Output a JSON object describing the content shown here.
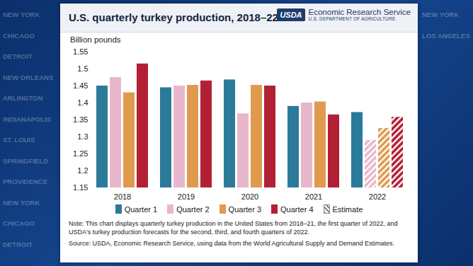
{
  "chart_data": {
    "type": "bar",
    "title": "U.S. quarterly turkey production, 2018–22",
    "logo": {
      "mark": "USDA",
      "name": "Economic Research Service",
      "department": "U.S. DEPARTMENT OF AGRICULTURE"
    },
    "y_label": "Billion pounds",
    "categories": [
      "2018",
      "2019",
      "2020",
      "2021",
      "2022"
    ],
    "series": [
      {
        "name": "Quarter 1",
        "color": "#2b7a99",
        "values": [
          1.45,
          1.445,
          1.468,
          1.39,
          1.372
        ],
        "estimate": [
          false,
          false,
          false,
          false,
          false
        ]
      },
      {
        "name": "Quarter 2",
        "color": "#e8b7cb",
        "values": [
          1.475,
          1.45,
          1.368,
          1.4,
          1.29
        ],
        "estimate": [
          false,
          false,
          false,
          false,
          true
        ]
      },
      {
        "name": "Quarter 3",
        "color": "#df9a4e",
        "values": [
          1.43,
          1.452,
          1.452,
          1.403,
          1.325
        ],
        "estimate": [
          false,
          false,
          false,
          false,
          true
        ]
      },
      {
        "name": "Quarter 4",
        "color": "#b32034",
        "values": [
          1.515,
          1.465,
          1.45,
          1.365,
          1.358
        ],
        "estimate": [
          false,
          false,
          false,
          false,
          true
        ]
      }
    ],
    "estimate_label": "Estimate",
    "ylim": [
      1.15,
      1.55
    ],
    "yticks": [
      1.15,
      1.2,
      1.25,
      1.3,
      1.35,
      1.4,
      1.45,
      1.5,
      1.55
    ],
    "grid": false,
    "legend": "bottom",
    "note": "Note: This chart displays quarterly turkey production in the United States from 2018–21, the first quarter of 2022, and USDA's turkey production forecasts for the second, third, and fourth quarters of 2022.",
    "source": "Source: USDA, Economic Research Service, using data from the World Agricultural Supply and Demand Estimates.",
    "background_text_left": [
      "NEW YORK",
      "CHICAGO",
      "DETROIT",
      "NEW ORLEANS",
      "ARLINGTON",
      "INDIANAPOLIS",
      "ST. LOUIS",
      "SPRINGFIELD",
      "PROVIDENCE",
      "NEW YORK",
      "CHICAGO",
      "DETROIT"
    ],
    "background_text_right": [
      "NEW YORK",
      "LOS ANGELES"
    ]
  }
}
